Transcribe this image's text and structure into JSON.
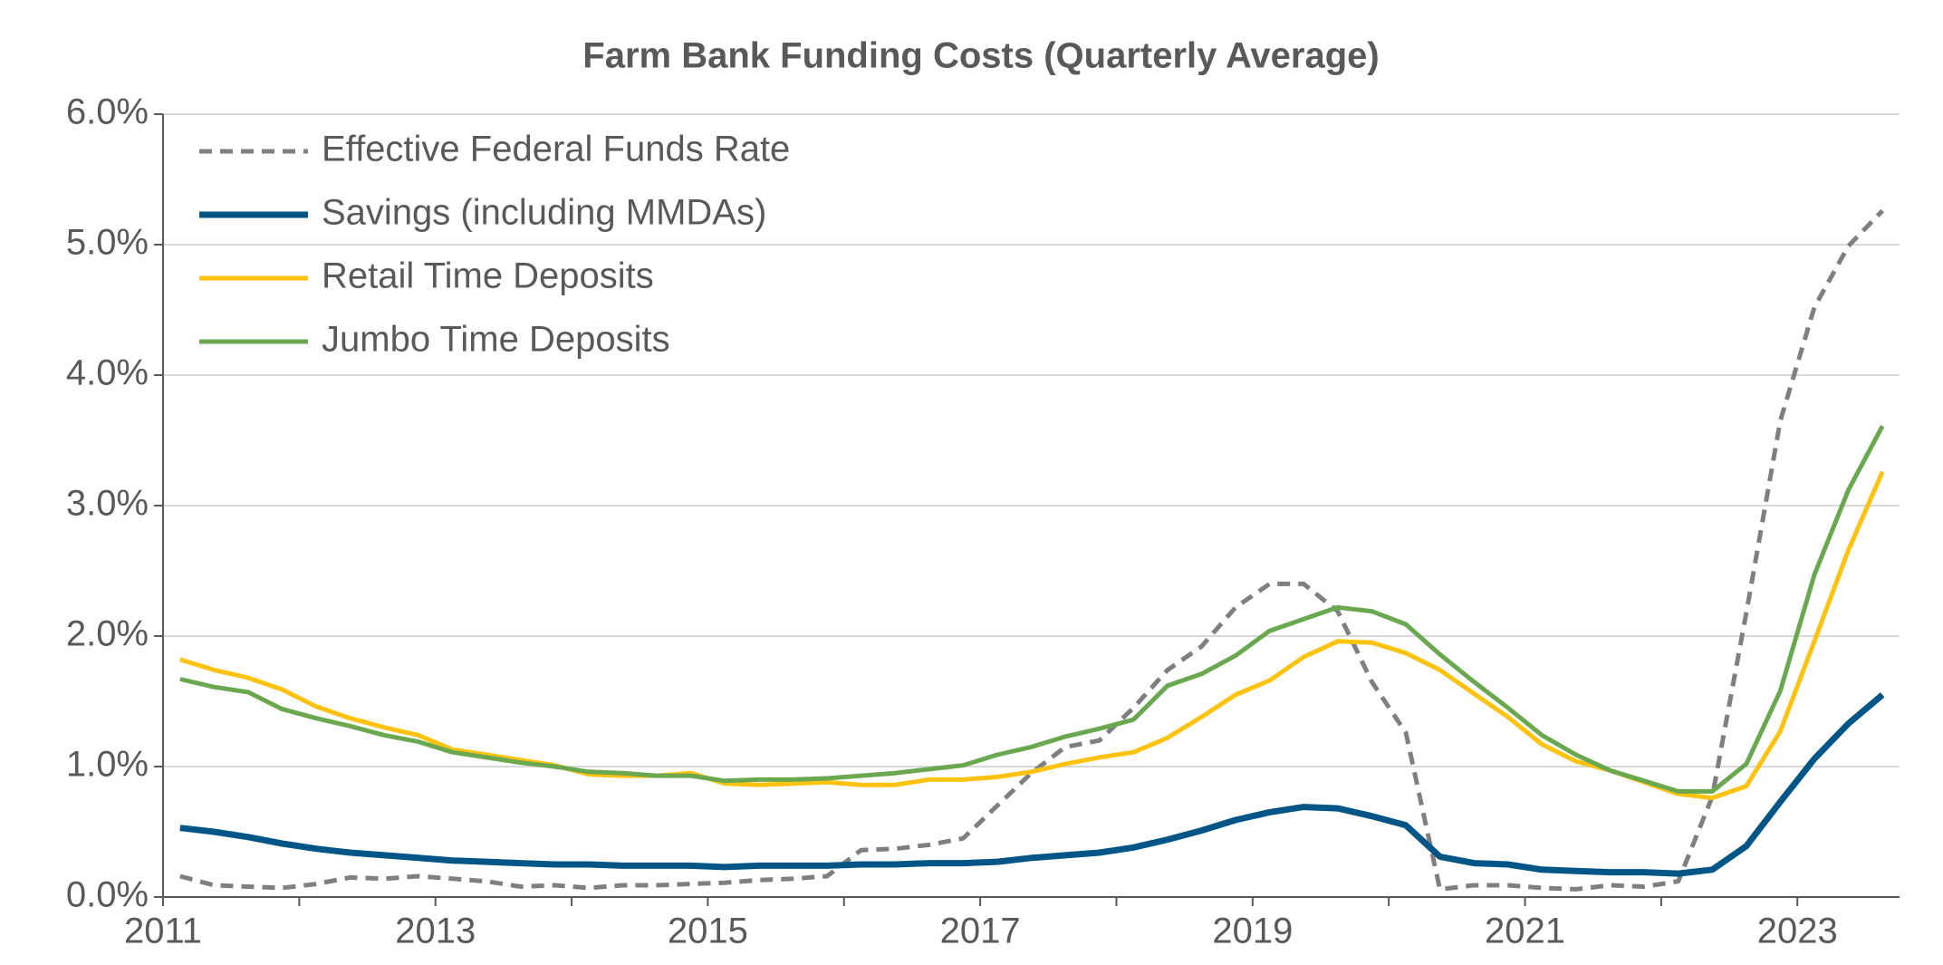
{
  "chart_data": {
    "type": "line",
    "title": "Farm Bank Funding Costs (Quarterly Average)",
    "x": [
      2011.125,
      2011.375,
      2011.625,
      2011.875,
      2012.125,
      2012.375,
      2012.625,
      2012.875,
      2013.125,
      2013.375,
      2013.625,
      2013.875,
      2014.125,
      2014.375,
      2014.625,
      2014.875,
      2015.125,
      2015.375,
      2015.625,
      2015.875,
      2016.125,
      2016.375,
      2016.625,
      2016.875,
      2017.125,
      2017.375,
      2017.625,
      2017.875,
      2018.125,
      2018.375,
      2018.625,
      2018.875,
      2019.125,
      2019.375,
      2019.625,
      2019.875,
      2020.125,
      2020.375,
      2020.625,
      2020.875,
      2021.125,
      2021.375,
      2021.625,
      2021.875,
      2022.125,
      2022.375,
      2022.625,
      2022.875,
      2023.125,
      2023.375,
      2023.625
    ],
    "series": [
      {
        "name": "Effective Federal Funds Rate",
        "color": "#7f7f7f",
        "dashed": true,
        "values": [
          0.16,
          0.09,
          0.08,
          0.07,
          0.1,
          0.15,
          0.14,
          0.16,
          0.14,
          0.12,
          0.08,
          0.09,
          0.07,
          0.09,
          0.09,
          0.1,
          0.11,
          0.13,
          0.14,
          0.16,
          0.36,
          0.37,
          0.4,
          0.45,
          0.7,
          0.95,
          1.15,
          1.2,
          1.45,
          1.74,
          1.92,
          2.22,
          2.4,
          2.4,
          2.19,
          1.65,
          1.26,
          0.06,
          0.09,
          0.09,
          0.07,
          0.06,
          0.09,
          0.08,
          0.12,
          0.77,
          2.18,
          3.65,
          4.52,
          4.99,
          5.26
        ]
      },
      {
        "name": "Savings (including MMDAs)",
        "color": "#005587",
        "values": [
          0.53,
          0.5,
          0.46,
          0.41,
          0.37,
          0.34,
          0.32,
          0.3,
          0.28,
          0.27,
          0.26,
          0.25,
          0.25,
          0.24,
          0.24,
          0.24,
          0.23,
          0.24,
          0.24,
          0.24,
          0.25,
          0.25,
          0.26,
          0.26,
          0.27,
          0.3,
          0.32,
          0.34,
          0.38,
          0.44,
          0.51,
          0.59,
          0.65,
          0.69,
          0.68,
          0.62,
          0.55,
          0.31,
          0.26,
          0.25,
          0.21,
          0.2,
          0.19,
          0.19,
          0.18,
          0.21,
          0.39,
          0.73,
          1.06,
          1.33,
          1.55
        ]
      },
      {
        "name": "Retail Time Deposits",
        "color": "#ffc20e",
        "values": [
          1.82,
          1.74,
          1.68,
          1.59,
          1.46,
          1.37,
          1.3,
          1.24,
          1.13,
          1.09,
          1.05,
          1.01,
          0.94,
          0.93,
          0.93,
          0.95,
          0.87,
          0.86,
          0.87,
          0.88,
          0.86,
          0.86,
          0.9,
          0.9,
          0.92,
          0.96,
          1.02,
          1.07,
          1.11,
          1.22,
          1.38,
          1.55,
          1.66,
          1.84,
          1.96,
          1.95,
          1.87,
          1.74,
          1.56,
          1.38,
          1.17,
          1.04,
          0.97,
          0.88,
          0.79,
          0.76,
          0.85,
          1.27,
          1.96,
          2.66,
          3.26
        ]
      },
      {
        "name": "Jumbo Time Deposits",
        "color": "#6aa84f",
        "values": [
          1.67,
          1.61,
          1.57,
          1.44,
          1.37,
          1.31,
          1.24,
          1.19,
          1.11,
          1.07,
          1.03,
          1.0,
          0.96,
          0.95,
          0.93,
          0.93,
          0.89,
          0.9,
          0.9,
          0.91,
          0.93,
          0.95,
          0.98,
          1.01,
          1.09,
          1.15,
          1.23,
          1.29,
          1.36,
          1.62,
          1.71,
          1.85,
          2.04,
          2.13,
          2.22,
          2.19,
          2.09,
          1.86,
          1.65,
          1.45,
          1.24,
          1.09,
          0.97,
          0.89,
          0.81,
          0.81,
          1.02,
          1.58,
          2.47,
          3.12,
          3.61
        ]
      }
    ],
    "xlim": [
      2011,
      2023.75
    ],
    "xticks": [
      2011,
      2013,
      2015,
      2017,
      2019,
      2021,
      2023
    ],
    "xminorticks": [
      2012,
      2014,
      2016,
      2018,
      2020,
      2022
    ],
    "ylim": [
      0,
      6
    ],
    "yticks": [
      {
        "value": 0,
        "label": "0.0%"
      },
      {
        "value": 1,
        "label": "1.0%"
      },
      {
        "value": 2,
        "label": "2.0%"
      },
      {
        "value": 3,
        "label": "3.0%"
      },
      {
        "value": 4,
        "label": "4.0%"
      },
      {
        "value": 5,
        "label": "5.0%"
      },
      {
        "value": 6,
        "label": "6.0%"
      }
    ],
    "grid": true,
    "legend": "top-left"
  }
}
